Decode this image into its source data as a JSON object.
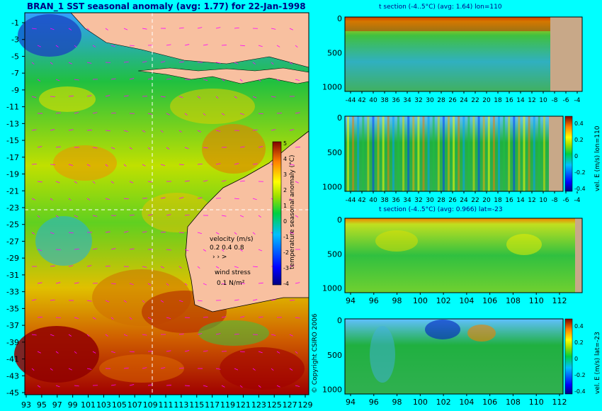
{
  "map": {
    "title": "BRAN_1 SST seasonal anomaly (avg: 1.77) for 22-Jan-1998",
    "x_ticks": [
      "93",
      "95",
      "97",
      "99",
      "101",
      "103",
      "105",
      "107",
      "109",
      "111",
      "113",
      "115",
      "117",
      "119",
      "121",
      "123",
      "125",
      "127",
      "129"
    ],
    "y_ticks": [
      "-1",
      "-3",
      "-5",
      "-7",
      "-9",
      "-11",
      "-13",
      "-15",
      "-17",
      "-19",
      "-21",
      "-23",
      "-25",
      "-27",
      "-29",
      "-31",
      "-33",
      "-35",
      "-37",
      "-39",
      "-41",
      "-43",
      "-45"
    ],
    "colorbar_label": "temperature seasonal anomaly (°C)",
    "colorbar_ticks": [
      "5",
      "4",
      "3",
      "2",
      "1",
      "0",
      "-1",
      "-2",
      "-3",
      "-4"
    ],
    "velocity_label": "velocity (m/s)",
    "velocity_scale": "0.2 0.4 0.8",
    "wind_label": "wind stress",
    "wind_scale": "0.1 N/m²",
    "copyright": "© Copyright CSIRO 2006"
  },
  "panels": [
    {
      "title": "t section (-4..5°C) (avg: 1.64) lon=110",
      "y_ticks": [
        "0",
        "500",
        "1000"
      ],
      "x_ticks": [
        "-44",
        "42",
        "40",
        "38",
        "36",
        "34",
        "32",
        "30",
        "28",
        "26",
        "24",
        "22",
        "20",
        "18",
        "16",
        "14",
        "12",
        "10",
        "-8",
        "-6",
        "-4"
      ],
      "side_label": "",
      "colorbar_ticks": []
    },
    {
      "title": "",
      "y_ticks": [
        "0",
        "500",
        "1000"
      ],
      "x_ticks": [
        "-44",
        "42",
        "40",
        "38",
        "36",
        "34",
        "32",
        "30",
        "28",
        "26",
        "24",
        "22",
        "20",
        "18",
        "16",
        "14",
        "12",
        "10",
        "-8",
        "-6",
        "-4"
      ],
      "side_label": "vel. E (m/s) lon=110",
      "colorbar_ticks": [
        "0.4",
        "0.2",
        "0",
        "-0.2",
        "-0.4"
      ]
    },
    {
      "title": "t section (-4..5°C) (avg: 0.966) lat=-23",
      "y_ticks": [
        "0",
        "500",
        "1000"
      ],
      "x_ticks": [
        "94",
        "96",
        "98",
        "100",
        "102",
        "104",
        "106",
        "108",
        "110",
        "112"
      ],
      "side_label": "",
      "colorbar_ticks": []
    },
    {
      "title": "",
      "y_ticks": [
        "0",
        "500",
        "1000"
      ],
      "x_ticks": [
        "94",
        "96",
        "98",
        "100",
        "102",
        "104",
        "106",
        "108",
        "110",
        "112"
      ],
      "side_label": "vel. E (m/s) lat=-23",
      "colorbar_ticks": [
        "0.4",
        "0.2",
        "0",
        "-0.2",
        "-0.4"
      ]
    }
  ],
  "chart_data": [
    {
      "type": "heatmap",
      "title": "BRAN_1 SST seasonal anomaly (avg: 1.77) for 22-Jan-1998",
      "x_range": [
        93,
        130
      ],
      "y_range": [
        -45,
        0
      ],
      "colorbar_range": [
        -4,
        5
      ],
      "colorbar_label": "temperature seasonal anomaly (°C)"
    },
    {
      "type": "heatmap",
      "title": "t section (-4..5°C) (avg: 1.64) lon=110",
      "x_range": [
        -45,
        -3
      ],
      "y_range": [
        0,
        1050
      ],
      "color_range": [
        -4,
        5
      ]
    },
    {
      "type": "heatmap",
      "title": "",
      "x_range": [
        -45,
        -3
      ],
      "y_range": [
        0,
        1050
      ],
      "color_range": [
        -0.4,
        0.4
      ],
      "colorbar_label": "vel. E (m/s) lon=110"
    },
    {
      "type": "heatmap",
      "title": "t section (-4..5°C) (avg: 0.966) lat=-23",
      "x_range": [
        93,
        114
      ],
      "y_range": [
        0,
        1050
      ],
      "color_range": [
        -4,
        5
      ]
    },
    {
      "type": "heatmap",
      "title": "",
      "x_range": [
        93,
        114
      ],
      "y_range": [
        0,
        1050
      ],
      "color_range": [
        -0.4,
        0.4
      ],
      "colorbar_label": "vel. E (m/s) lat=-23"
    }
  ]
}
